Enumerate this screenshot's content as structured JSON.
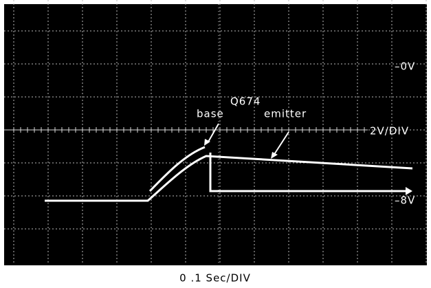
{
  "labels": {
    "device": "Q674",
    "base": "base",
    "emitter": "emitter",
    "zero": "–0V",
    "scale": "2V/DIV",
    "minus8": "–8V",
    "timebase": "0 .1 Sec/DIV"
  }
}
